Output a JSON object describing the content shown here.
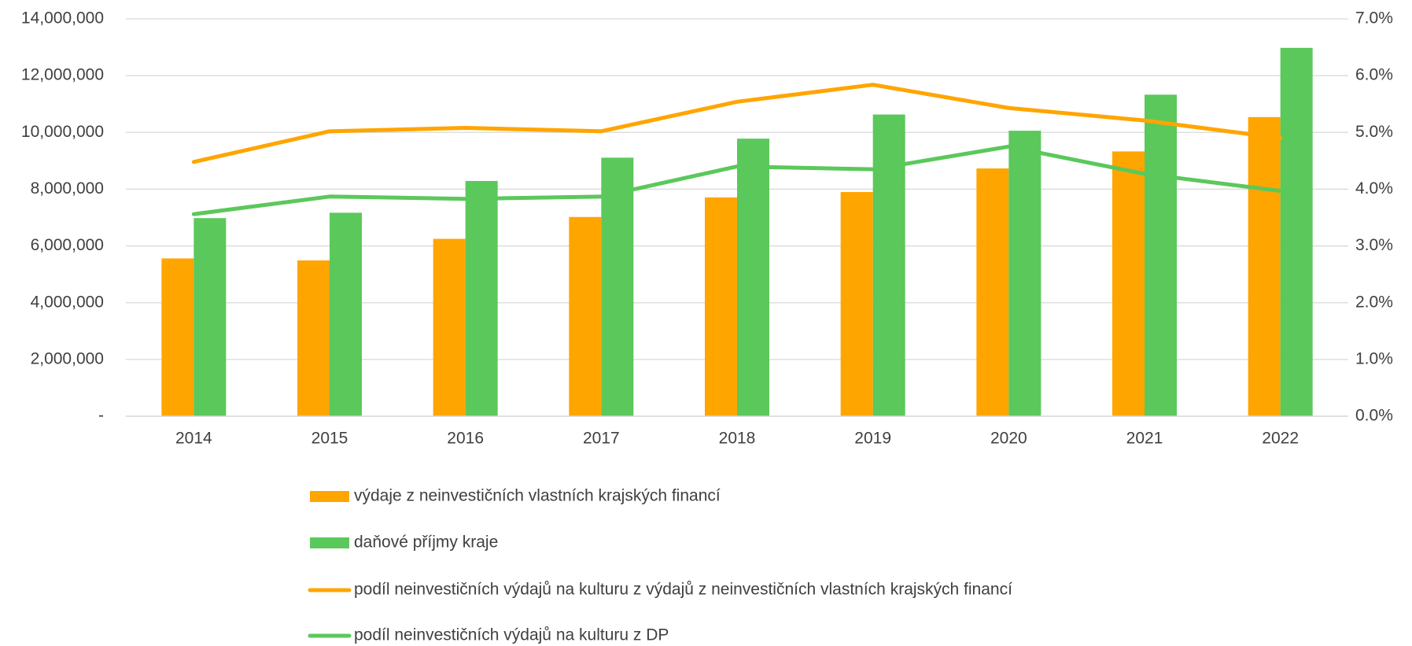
{
  "chart_data": {
    "type": "bar-line",
    "categories": [
      "2014",
      "2015",
      "2016",
      "2017",
      "2018",
      "2019",
      "2020",
      "2021",
      "2022"
    ],
    "series": [
      {
        "name": "výdaje z neinvestičních vlastních krajských financí",
        "type": "bar",
        "color": "#ffa500",
        "values": [
          5560000,
          5490000,
          6250000,
          7020000,
          7710000,
          7900000,
          8730000,
          9330000,
          10540000
        ]
      },
      {
        "name": "daňové příjmy kraje",
        "type": "bar",
        "color": "#5bc85b",
        "values": [
          6980000,
          7170000,
          8290000,
          9110000,
          9780000,
          10630000,
          10060000,
          11330000,
          12980000
        ]
      },
      {
        "name": "podíl neinvestičních výdajů na kulturu z výdajů z neinvestičních vlastních krajských financí",
        "type": "line",
        "axis": "y2",
        "color": "#ffa500",
        "values": [
          4.48,
          5.02,
          5.08,
          5.02,
          5.54,
          5.84,
          5.43,
          5.21,
          4.9
        ]
      },
      {
        "name": "podíl neinvestičních výdajů na kulturu z DP",
        "type": "line",
        "axis": "y2",
        "color": "#5bc85b",
        "values": [
          3.56,
          3.87,
          3.83,
          3.87,
          4.4,
          4.35,
          4.75,
          4.27,
          3.97
        ]
      }
    ],
    "ylim": [
      0,
      14000000
    ],
    "yticks": [
      {
        "value": 0,
        "label": "-"
      },
      {
        "value": 2000000,
        "label": "2,000,000"
      },
      {
        "value": 4000000,
        "label": "4,000,000"
      },
      {
        "value": 6000000,
        "label": "6,000,000"
      },
      {
        "value": 8000000,
        "label": "8,000,000"
      },
      {
        "value": 10000000,
        "label": "10,000,000"
      },
      {
        "value": 12000000,
        "label": "12,000,000"
      },
      {
        "value": 14000000,
        "label": "14,000,000"
      }
    ],
    "y2lim": [
      0,
      7
    ],
    "y2ticks": [
      {
        "value": 0,
        "label": "0.0%"
      },
      {
        "value": 1,
        "label": "1.0%"
      },
      {
        "value": 2,
        "label": "2.0%"
      },
      {
        "value": 3,
        "label": "3.0%"
      },
      {
        "value": 4,
        "label": "4.0%"
      },
      {
        "value": 5,
        "label": "5.0%"
      },
      {
        "value": 6,
        "label": "6.0%"
      },
      {
        "value": 7,
        "label": "7.0%"
      }
    ],
    "grid": true,
    "legend": "bottom"
  }
}
